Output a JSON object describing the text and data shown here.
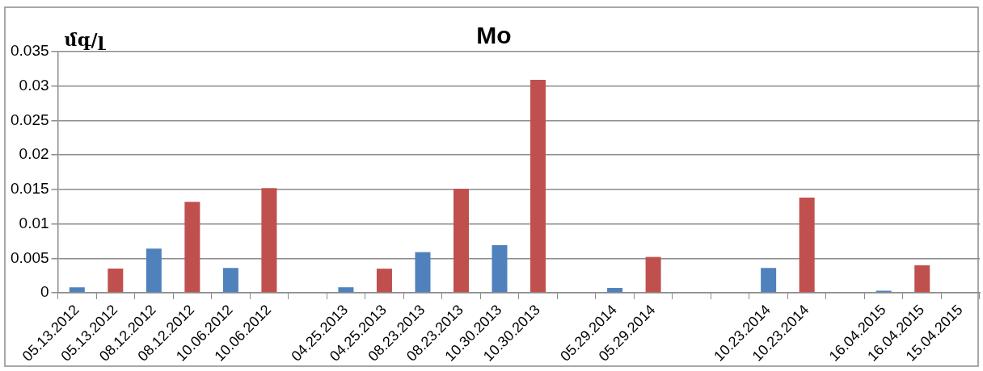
{
  "chart_data": {
    "type": "bar",
    "title": "Mo",
    "ylabel": "մգ/լ",
    "categories": [
      "05.13.2012",
      "05.13.2012",
      "08.12.2012",
      "08.12.2012",
      "10.06.2012",
      "10.06.2012",
      null,
      "04.25.2013",
      "04.25.2013",
      "08.23.2013",
      "08.23.2013",
      "10.30.2013",
      "10.30.2013",
      null,
      "05.29.2014",
      "05.29.2014",
      null,
      null,
      "10.23.2014",
      "10.23.2014",
      null,
      "16.04.2015",
      "16.04.2015",
      "15.04.2015"
    ],
    "values": [
      0.0008,
      0.0035,
      0.0064,
      0.0132,
      0.0036,
      0.0152,
      null,
      0.0008,
      0.0035,
      0.0059,
      0.0151,
      0.0069,
      0.0309,
      null,
      0.0007,
      0.0052,
      null,
      null,
      0.0036,
      0.0138,
      null,
      0.0003,
      0.004,
      null
    ],
    "colors": [
      "#4f81bd",
      "#c0504d",
      "#4f81bd",
      "#c0504d",
      "#4f81bd",
      "#c0504d",
      "#4f81bd",
      "#4f81bd",
      "#c0504d",
      "#4f81bd",
      "#c0504d",
      "#4f81bd",
      "#c0504d",
      "#4f81bd",
      "#4f81bd",
      "#c0504d",
      "#4f81bd",
      "#4f81bd",
      "#4f81bd",
      "#c0504d",
      "#4f81bd",
      "#4f81bd",
      "#c0504d",
      "#4f81bd"
    ],
    "ylim": [
      0,
      0.035
    ],
    "yticks": [
      0,
      0.005,
      0.01,
      0.015,
      0.02,
      0.025,
      0.03,
      0.035
    ],
    "grid": "y",
    "legend": false
  }
}
